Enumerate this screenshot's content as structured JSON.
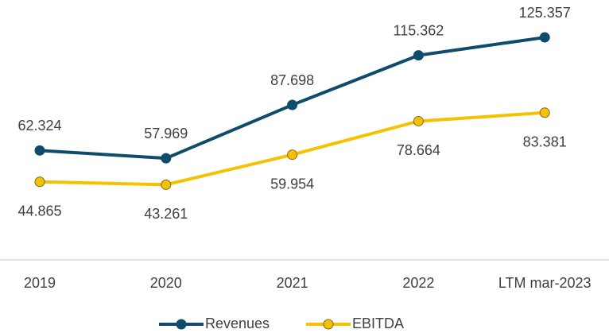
{
  "chart_data": {
    "type": "line",
    "categories": [
      "2019",
      "2020",
      "2021",
      "2022",
      "LTM mar-2023"
    ],
    "series": [
      {
        "name": "Revenues",
        "color": "#0f4c6b",
        "values": [
          62.324,
          57.969,
          87.698,
          115.362,
          125.357
        ]
      },
      {
        "name": "EBITDA",
        "color": "#f5c100",
        "values": [
          44.865,
          43.261,
          59.954,
          78.664,
          83.381
        ]
      }
    ],
    "ylim": [
      0,
      140
    ],
    "legend": "bottom"
  }
}
